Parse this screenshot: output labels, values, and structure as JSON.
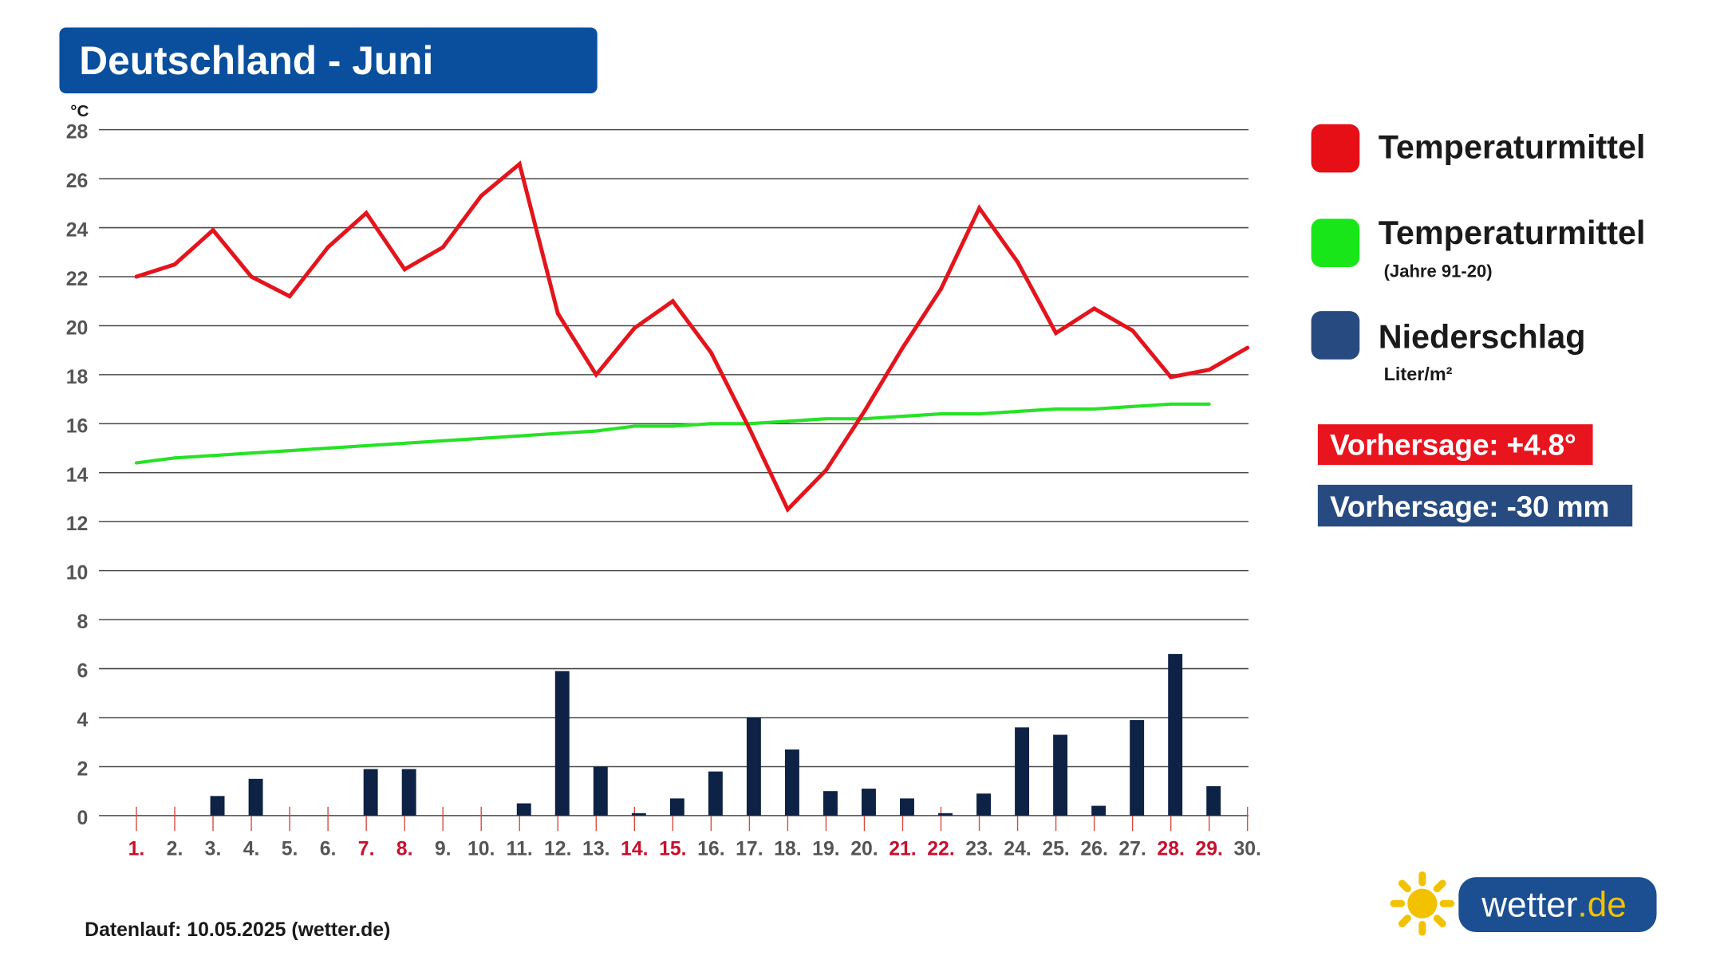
{
  "chart_data": {
    "type": "line",
    "title": "Deutschland - Juni",
    "ylabel": "°C",
    "ylim": [
      0,
      28
    ],
    "yticks": [
      0,
      2,
      4,
      6,
      8,
      10,
      12,
      14,
      16,
      18,
      20,
      22,
      24,
      26,
      28
    ],
    "x": [
      "1.",
      "2.",
      "3.",
      "4.",
      "5.",
      "6.",
      "7.",
      "8.",
      "9.",
      "10.",
      "11.",
      "12.",
      "13.",
      "14.",
      "15.",
      "16.",
      "17.",
      "18.",
      "19.",
      "20.",
      "21.",
      "22.",
      "23.",
      "24.",
      "25.",
      "26.",
      "27.",
      "28.",
      "29.",
      "30."
    ],
    "highlighted_days": [
      1,
      7,
      8,
      14,
      15,
      21,
      22,
      28,
      29
    ],
    "highlight_color": "#c8102e",
    "label_color": "#555555",
    "grid": true,
    "legend_position": "right",
    "series": [
      {
        "name": "Temperaturmittel",
        "type": "line",
        "color": "#e4141c",
        "values": [
          22.0,
          22.5,
          23.9,
          22.0,
          21.2,
          23.2,
          24.6,
          22.3,
          23.2,
          25.3,
          26.6,
          20.5,
          18.0,
          19.9,
          21.0,
          18.9,
          15.8,
          12.5,
          14.1,
          16.5,
          19.1,
          21.5,
          24.8,
          22.6,
          19.7,
          20.7,
          19.8,
          17.9,
          18.2,
          19.1
        ]
      },
      {
        "name": "Temperaturmittel",
        "note": "(Jahre 91-20)",
        "type": "line",
        "color": "#26e226",
        "values": [
          14.4,
          14.6,
          14.7,
          14.8,
          14.9,
          15.0,
          15.1,
          15.2,
          15.3,
          15.4,
          15.5,
          15.6,
          15.7,
          15.9,
          15.9,
          16.0,
          16.0,
          16.1,
          16.2,
          16.2,
          16.3,
          16.4,
          16.4,
          16.5,
          16.6,
          16.6,
          16.7,
          16.8,
          16.8,
          null
        ]
      },
      {
        "name": "Niederschlag",
        "unit": "Liter/m²",
        "type": "bar",
        "color": "#0d2244",
        "legend_color": "#274b80",
        "values": [
          0,
          0,
          0.8,
          1.5,
          0,
          0,
          1.9,
          1.9,
          0,
          0,
          0.5,
          5.9,
          2.0,
          0.1,
          0.7,
          1.8,
          4.0,
          2.7,
          1.0,
          1.1,
          0.7,
          0.1,
          0.9,
          3.6,
          3.3,
          0.4,
          3.9,
          6.6,
          1.2,
          0
        ]
      }
    ]
  },
  "legend_colors": {
    "temperature": "#e60f16",
    "climate": "#19e619"
  },
  "forecast": {
    "temperature": {
      "label": "Vorhersage: +4.8°",
      "color": "#e8141e"
    },
    "precipitation": {
      "label": "Vorhersage: -30 mm",
      "color": "#274b80"
    }
  },
  "footer": {
    "data_run": "Datenlauf: 10.05.2025 (wetter.de)"
  },
  "logo": {
    "icon": "sun-icon",
    "name": "wetter",
    "suffix": ".de",
    "color": "#1c4f92",
    "accent": "#f2c100"
  },
  "colors": {
    "title_background": "#0a4f9d"
  }
}
